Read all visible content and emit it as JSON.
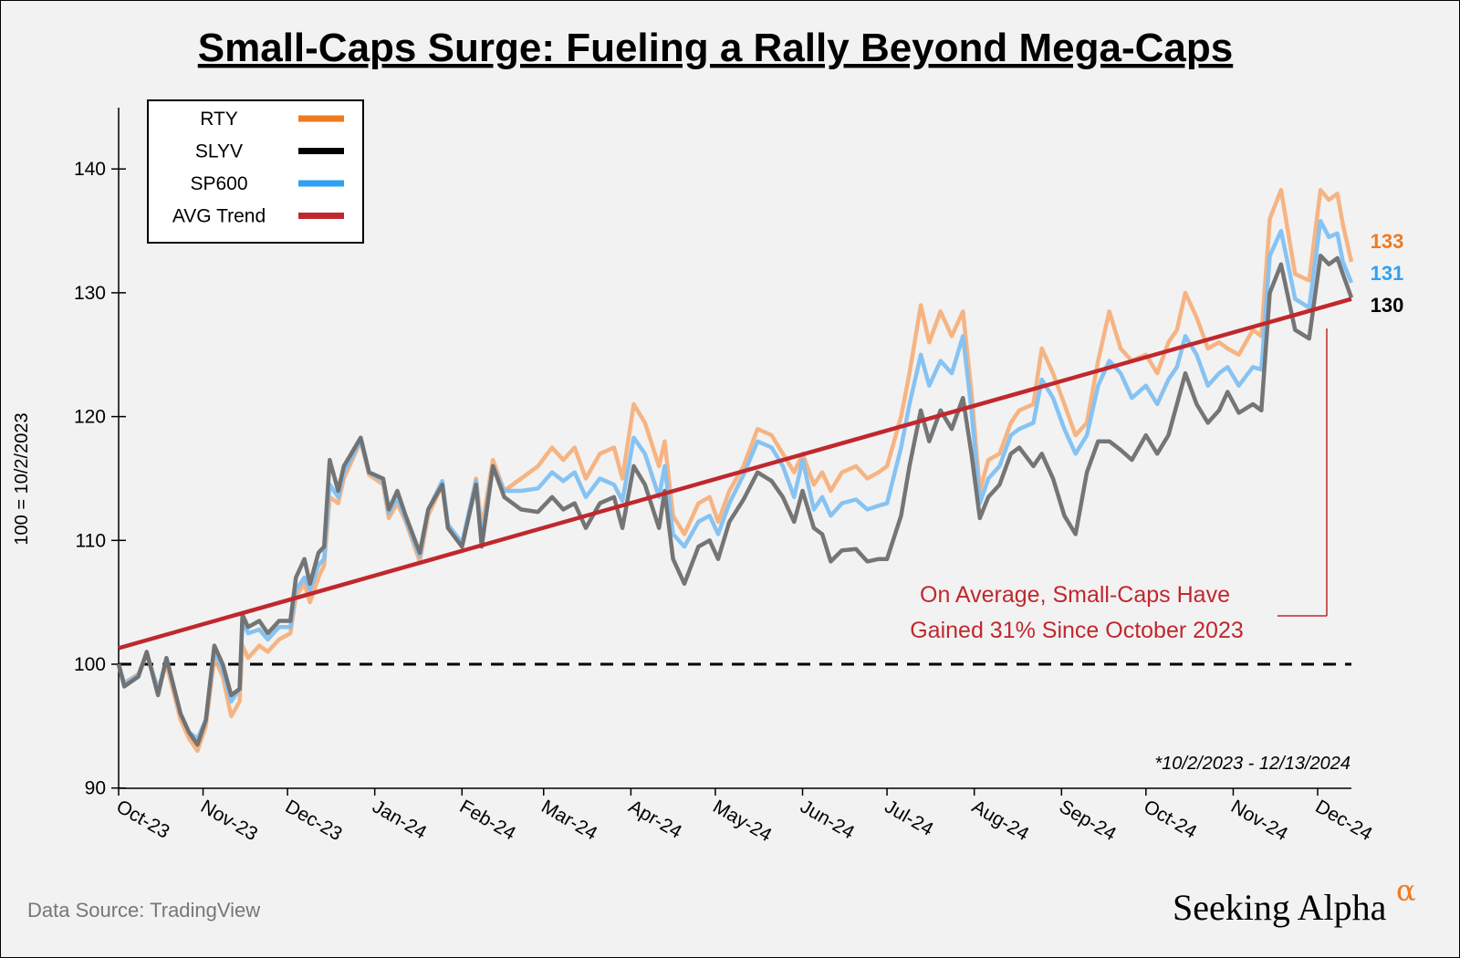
{
  "chart_data": {
    "type": "line",
    "title": "Small-Caps Surge: Fueling a Rally Beyond Mega-Caps",
    "ylabel": "100 = 10/2/2023",
    "xlabel": "",
    "ylim": [
      90,
      145
    ],
    "yticks": [
      90,
      100,
      110,
      120,
      130,
      140
    ],
    "xlim": [
      "2023-10-02",
      "2024-12-13"
    ],
    "xtick_labels": [
      {
        "date": "2023-10-01",
        "label": "Oct-23"
      },
      {
        "date": "2023-11-01",
        "label": "Nov-23"
      },
      {
        "date": "2023-12-01",
        "label": "Dec-23"
      },
      {
        "date": "2024-01-01",
        "label": "Jan-24"
      },
      {
        "date": "2024-02-01",
        "label": "Feb-24"
      },
      {
        "date": "2024-03-01",
        "label": "Mar-24"
      },
      {
        "date": "2024-04-01",
        "label": "Apr-24"
      },
      {
        "date": "2024-05-01",
        "label": "May-24"
      },
      {
        "date": "2024-06-01",
        "label": "Jun-24"
      },
      {
        "date": "2024-07-01",
        "label": "Jul-24"
      },
      {
        "date": "2024-08-01",
        "label": "Aug-24"
      },
      {
        "date": "2024-09-01",
        "label": "Sep-24"
      },
      {
        "date": "2024-10-01",
        "label": "Oct-24"
      },
      {
        "date": "2024-11-01",
        "label": "Nov-24"
      },
      {
        "date": "2024-12-01",
        "label": "Dec-24"
      }
    ],
    "grid": false,
    "legend_placement": "top-left",
    "reference_line": {
      "y": 100,
      "style": "dashed",
      "color": "#000000"
    },
    "x": [
      "2023-10-02",
      "2023-10-04",
      "2023-10-09",
      "2023-10-12",
      "2023-10-16",
      "2023-10-19",
      "2023-10-24",
      "2023-10-27",
      "2023-10-30",
      "2023-11-02",
      "2023-11-05",
      "2023-11-08",
      "2023-11-11",
      "2023-11-14",
      "2023-11-15",
      "2023-11-17",
      "2023-11-21",
      "2023-11-24",
      "2023-11-28",
      "2023-12-02",
      "2023-12-04",
      "2023-12-07",
      "2023-12-09",
      "2023-12-12",
      "2023-12-14",
      "2023-12-16",
      "2023-12-19",
      "2023-12-21",
      "2023-12-27",
      "2023-12-30",
      "2024-01-04",
      "2024-01-06",
      "2024-01-09",
      "2024-01-12",
      "2024-01-17",
      "2024-01-20",
      "2024-01-25",
      "2024-01-27",
      "2024-02-01",
      "2024-02-06",
      "2024-02-08",
      "2024-02-12",
      "2024-02-16",
      "2024-02-22",
      "2024-02-28",
      "2024-03-04",
      "2024-03-08",
      "2024-03-12",
      "2024-03-16",
      "2024-03-21",
      "2024-03-26",
      "2024-03-29",
      "2024-04-02",
      "2024-04-06",
      "2024-04-11",
      "2024-04-13",
      "2024-04-16",
      "2024-04-20",
      "2024-04-25",
      "2024-04-29",
      "2024-05-02",
      "2024-05-06",
      "2024-05-11",
      "2024-05-16",
      "2024-05-21",
      "2024-05-25",
      "2024-05-29",
      "2024-06-01",
      "2024-06-05",
      "2024-06-08",
      "2024-06-11",
      "2024-06-15",
      "2024-06-20",
      "2024-06-24",
      "2024-06-28",
      "2024-07-01",
      "2024-07-06",
      "2024-07-09",
      "2024-07-13",
      "2024-07-16",
      "2024-07-20",
      "2024-07-24",
      "2024-07-28",
      "2024-07-31",
      "2024-08-03",
      "2024-08-06",
      "2024-08-10",
      "2024-08-14",
      "2024-08-17",
      "2024-08-22",
      "2024-08-25",
      "2024-08-29",
      "2024-09-02",
      "2024-09-06",
      "2024-09-10",
      "2024-09-14",
      "2024-09-18",
      "2024-09-22",
      "2024-09-26",
      "2024-10-01",
      "2024-10-05",
      "2024-10-09",
      "2024-10-12",
      "2024-10-15",
      "2024-10-19",
      "2024-10-23",
      "2024-10-27",
      "2024-10-30",
      "2024-11-03",
      "2024-11-08",
      "2024-11-11",
      "2024-11-14",
      "2024-11-18",
      "2024-11-23",
      "2024-11-28",
      "2024-12-02",
      "2024-12-05",
      "2024-12-08",
      "2024-12-10",
      "2024-12-13"
    ],
    "series": [
      {
        "name": "RTY",
        "color": "#f07a20",
        "line_color": "#f5b07c",
        "end_label": "133",
        "values": [
          100,
          98.5,
          99.2,
          100.8,
          98,
          100,
          95.5,
          94,
          93,
          95,
          100.5,
          99,
          95.8,
          97,
          101.5,
          100.5,
          101.5,
          101,
          102,
          102.5,
          105.5,
          106.5,
          105,
          107,
          108,
          113.5,
          113,
          115,
          118,
          115.3,
          114.5,
          111.8,
          113,
          111.5,
          108.3,
          112,
          114.5,
          111,
          109.5,
          115,
          111,
          116.5,
          114,
          115,
          116,
          117.5,
          116.5,
          117.5,
          115,
          117,
          117.5,
          115,
          121,
          119.5,
          116,
          118,
          112,
          110.5,
          113,
          113.5,
          111.5,
          114,
          116,
          119,
          118.5,
          117,
          115.5,
          117,
          114.5,
          115.5,
          114,
          115.5,
          116,
          115,
          115.5,
          116,
          120,
          123.5,
          129,
          126,
          128.5,
          126.5,
          128.5,
          122,
          114,
          116.5,
          117,
          119.5,
          120.5,
          121,
          125.5,
          123.5,
          121,
          118.5,
          119.5,
          124.5,
          128.5,
          125.5,
          124.5,
          125,
          123.5,
          126,
          127,
          130,
          128,
          125.5,
          126,
          125.5,
          125,
          127,
          126.5,
          136,
          138.3,
          131.5,
          131,
          138.3,
          137.5,
          138,
          135.5,
          132.5
        ]
      },
      {
        "name": "SLYV",
        "color": "#000000",
        "line_color": "#6e6e6e",
        "end_label": "130",
        "values": [
          100,
          98.2,
          99,
          101,
          97.5,
          100.5,
          96,
          94.5,
          93.5,
          95.5,
          101.5,
          100,
          97.5,
          98,
          104,
          103,
          103.5,
          102.5,
          103.5,
          103.5,
          107,
          108.5,
          106.5,
          109,
          109.5,
          116.5,
          114,
          116,
          118.3,
          115.5,
          115,
          112.5,
          114,
          112,
          109,
          112.5,
          114.5,
          111,
          109.5,
          114.5,
          109.5,
          116,
          113.5,
          112.5,
          112.3,
          113.5,
          112.5,
          113,
          111,
          113,
          113.5,
          111,
          116,
          114.5,
          111,
          114,
          108.5,
          106.5,
          109.5,
          110,
          108.5,
          111.5,
          113.3,
          115.5,
          114.8,
          113.5,
          111.5,
          114,
          111,
          110.5,
          108.3,
          109.2,
          109.3,
          108.3,
          108.5,
          108.5,
          112,
          116,
          120.5,
          118,
          120.5,
          119,
          121.5,
          117,
          111.8,
          113.5,
          114.5,
          117,
          117.5,
          116,
          117,
          115,
          112,
          110.5,
          115.5,
          118,
          118,
          117.3,
          116.5,
          118.5,
          117,
          118.5,
          121,
          123.5,
          121,
          119.5,
          120.5,
          122,
          120.3,
          121,
          120.5,
          130,
          132.3,
          127,
          126.3,
          133,
          132.3,
          132.8,
          131.5,
          129.6
        ]
      },
      {
        "name": "SP600",
        "color": "#2ea1f5",
        "line_color": "#80c0f2",
        "end_label": "131",
        "values": [
          100,
          98.4,
          99.1,
          100.9,
          97.8,
          100.5,
          96,
          94.5,
          94,
          95.5,
          101.2,
          99.5,
          97,
          98,
          103.5,
          102.5,
          102.8,
          102,
          103,
          103,
          106,
          107,
          106,
          108,
          108.5,
          114.5,
          113.5,
          115.5,
          118.1,
          115.5,
          114.8,
          112.2,
          113.5,
          111.7,
          108.7,
          112.5,
          114.8,
          111.3,
          109.8,
          114.8,
          110,
          116,
          114,
          114,
          114.2,
          115.5,
          114.8,
          115.5,
          113.5,
          115,
          114.5,
          113.2,
          118.3,
          117,
          113.5,
          116,
          110.5,
          109.5,
          111.5,
          112,
          110.5,
          113,
          115.3,
          118,
          117.5,
          116,
          113.5,
          116.5,
          112.5,
          113.5,
          112,
          113,
          113.3,
          112.5,
          112.8,
          113,
          117.5,
          121,
          125,
          122.5,
          124.5,
          123.5,
          126.5,
          120.5,
          113,
          115,
          116,
          118.5,
          119,
          119.5,
          123,
          121.5,
          119,
          117,
          118.5,
          122.5,
          124.5,
          123.5,
          121.5,
          122.5,
          121,
          123,
          124,
          126.5,
          125,
          122.5,
          123.5,
          124,
          122.5,
          124,
          123.8,
          133,
          135,
          129.5,
          128.8,
          135.8,
          134.5,
          134.8,
          132.5,
          130.8
        ]
      }
    ],
    "trend": {
      "name": "AVG Trend",
      "color": "#c0282d",
      "start": {
        "x": "2023-10-02",
        "y": 101.3
      },
      "end": {
        "x": "2024-12-13",
        "y": 129.5
      }
    },
    "annotation": "On Average, Small-Caps Have Gained 31% Since October 2023",
    "annotation_lines": [
      "On Average, Small-Caps Have",
      "Gained 31% Since October 2023"
    ],
    "date_range_note": "*10/2/2023 - 12/13/2024"
  },
  "footer": {
    "source": "Data Source: TradingView",
    "logo_text": "Seeking Alpha",
    "logo_mark": "α"
  }
}
